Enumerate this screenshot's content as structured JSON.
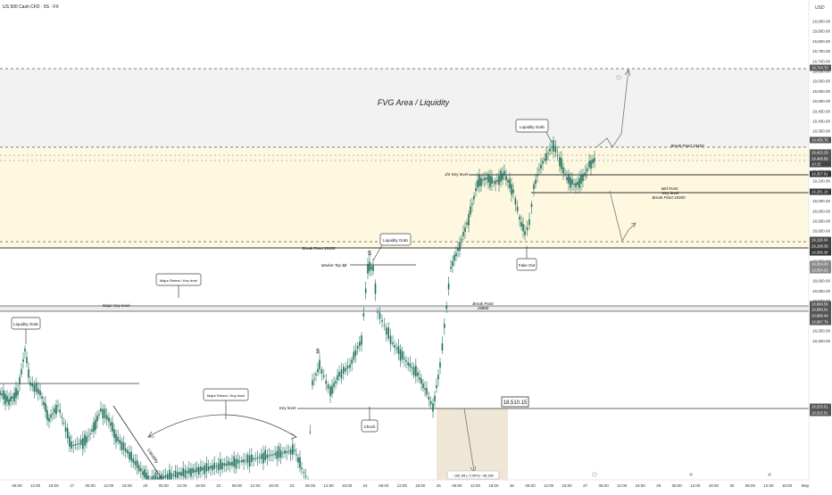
{
  "header": {
    "symbol_title": "US 500 Cash CFD · 5S · FX"
  },
  "currency": "USD",
  "price_axis": {
    "labels": [
      "19,900.00",
      "19,850.00",
      "19,800.00",
      "19,750.00",
      "19,700.00",
      "19,650.00",
      "19,600.00",
      "19,550.00",
      "19,500.00",
      "19,450.00",
      "19,400.00",
      "19,350.00",
      "19,300.00",
      "19,250.00",
      "19,200.00",
      "19,150.00",
      "19,100.00",
      "19,050.00",
      "19,000.00",
      "18,950.00",
      "18,900.00",
      "18,850.00",
      "18,800.00",
      "18,750.00",
      "18,700.00",
      "18,650.00",
      "18,600.00",
      "18,550.00",
      "18,500.00",
      "18,450.00",
      "18,400.00",
      "18,350.00",
      "18,300.00"
    ],
    "tags": [
      "19,734.70",
      "19,458.76",
      "19,422.29",
      "19,408.89",
      "10:15",
      "19,357.81",
      "19,281.10",
      "19,118.34",
      "19,108.35",
      "19,095.38",
      "19,054.20",
      "19,054.20",
      "18,890.59",
      "18,889.91",
      "18,886.44",
      "18,887.79",
      "18,525.51",
      "18,525.51"
    ]
  },
  "time_axis": {
    "labels": [
      "06:00",
      "12:00",
      "18:00",
      "17",
      "06:00",
      "12:00",
      "18:00",
      "20",
      "06:00",
      "12:00",
      "18:00",
      "22",
      "06:00",
      "12:00",
      "18:00",
      "23",
      "06:00",
      "12:00",
      "18:00",
      "24",
      "06:00",
      "12:00",
      "18:00",
      "25",
      "06:00",
      "12:00",
      "18:00",
      "26",
      "06:00",
      "12:00",
      "18:00",
      "27",
      "06:00",
      "12:00",
      "18:00",
      "29",
      "06:00",
      "12:00",
      "18:00",
      "30",
      "06:00",
      "12:00",
      "18:00",
      "May"
    ]
  },
  "annotations": {
    "fvg_title": "FVG Area / Liquidity",
    "liquidity_grab_top": "Liquidity Grab",
    "break_point_19450": "Break Point 19450",
    "one_hr_key_level": "1hr Key level",
    "mid_point": "Mid Point",
    "key_level_right": "Key level",
    "break_point_19300": "Break Point 19300",
    "liquidity_grab_mid": "Liquidity Grab",
    "dollar_top": "$",
    "break_point_19100": "Break Point 19100",
    "market_top": "Market Top $$",
    "fake_out": "Fake Out",
    "major_retest_1": "Major Retest / Key level",
    "major_key_level": "Major Key level",
    "break_point": "Break Point",
    "break_point_value": "18880",
    "liquidity_grab_left": "Liquidity Grab",
    "dollar_mid": "$",
    "major_retest_2": "Major Retest / Key level",
    "key_level_bottom": "Key level",
    "price_label": "18,510.15",
    "choch": "Choch",
    "liquidity_rotated": "Liquidity",
    "measure_text": "−381.68 (−2.06%) −38,168"
  },
  "colors": {
    "candle": "#1e6f5c",
    "fvg_band": "#f2f2f2",
    "yellow_band": "#fff8e1",
    "measure_box": "#e8dcc4"
  }
}
